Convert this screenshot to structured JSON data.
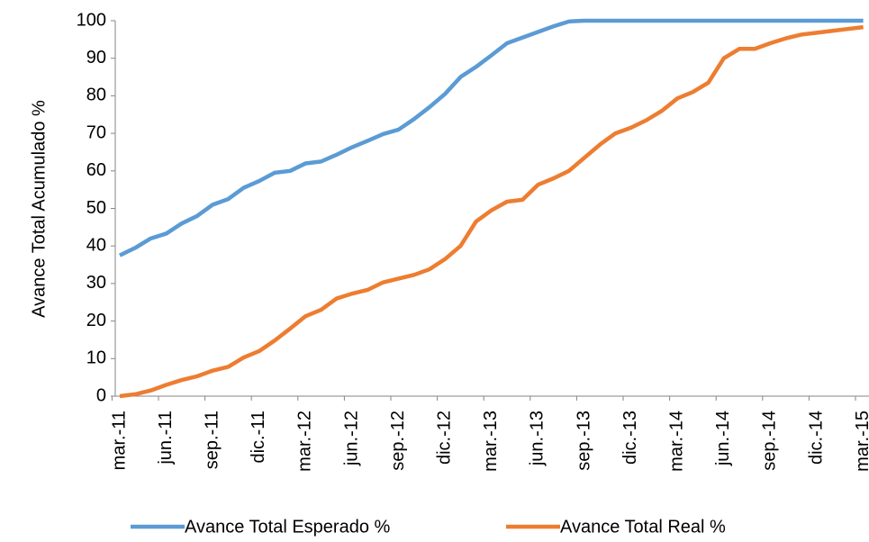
{
  "chart_data": {
    "type": "line",
    "y_label": "Avance Total  Acumulado %",
    "categories": [
      "mar.-11",
      null,
      null,
      "jun.-11",
      null,
      null,
      "sep.-11",
      null,
      null,
      "dic.-11",
      null,
      null,
      "mar.-12",
      null,
      null,
      "jun.-12",
      null,
      null,
      "sep.-12",
      null,
      null,
      "dic.-12",
      null,
      null,
      "mar.-13",
      null,
      null,
      "jun.-13",
      null,
      null,
      "sep.-13",
      null,
      null,
      "dic.-13",
      null,
      null,
      "mar.-14",
      null,
      null,
      "jun.-14",
      null,
      null,
      "sep.-14",
      null,
      null,
      "dic.-14",
      null,
      null,
      "mar.-15"
    ],
    "series": [
      {
        "name": "Avance Total Esperado %",
        "color": "#5b9bd5",
        "values": [
          37.5,
          39.5,
          42,
          43.3,
          46,
          48,
          51,
          52.5,
          55.5,
          57.3,
          59.5,
          60,
          62,
          62.5,
          64.3,
          66.3,
          68,
          69.8,
          71,
          73.8,
          77,
          80.5,
          85,
          87.7,
          90.8,
          94,
          95.5,
          97,
          98.5,
          99.8,
          100,
          100,
          100,
          100,
          100,
          100,
          100,
          100,
          100,
          100,
          100,
          100,
          100,
          100,
          100,
          100,
          100,
          100,
          100
        ]
      },
      {
        "name": "Avance Total Real %",
        "color": "#ed7d31",
        "values": [
          0,
          0.5,
          1.5,
          3,
          4.3,
          5.3,
          6.8,
          7.8,
          10.3,
          12,
          14.8,
          18,
          21.3,
          23,
          26,
          27.3,
          28.3,
          30.3,
          31.3,
          32.3,
          33.8,
          36.5,
          40,
          46.5,
          49.5,
          51.8,
          52.3,
          56.3,
          58,
          60,
          63.5,
          67,
          70,
          71.5,
          73.5,
          76,
          79.3,
          81,
          83.5,
          90,
          92.5,
          92.5,
          94,
          95.3,
          96.3,
          96.8,
          97.3,
          97.8,
          98.3
        ]
      }
    ],
    "ylim": [
      0,
      100
    ],
    "yticks": [
      0,
      10,
      20,
      30,
      40,
      50,
      60,
      70,
      80,
      90,
      100
    ],
    "grid": false
  }
}
